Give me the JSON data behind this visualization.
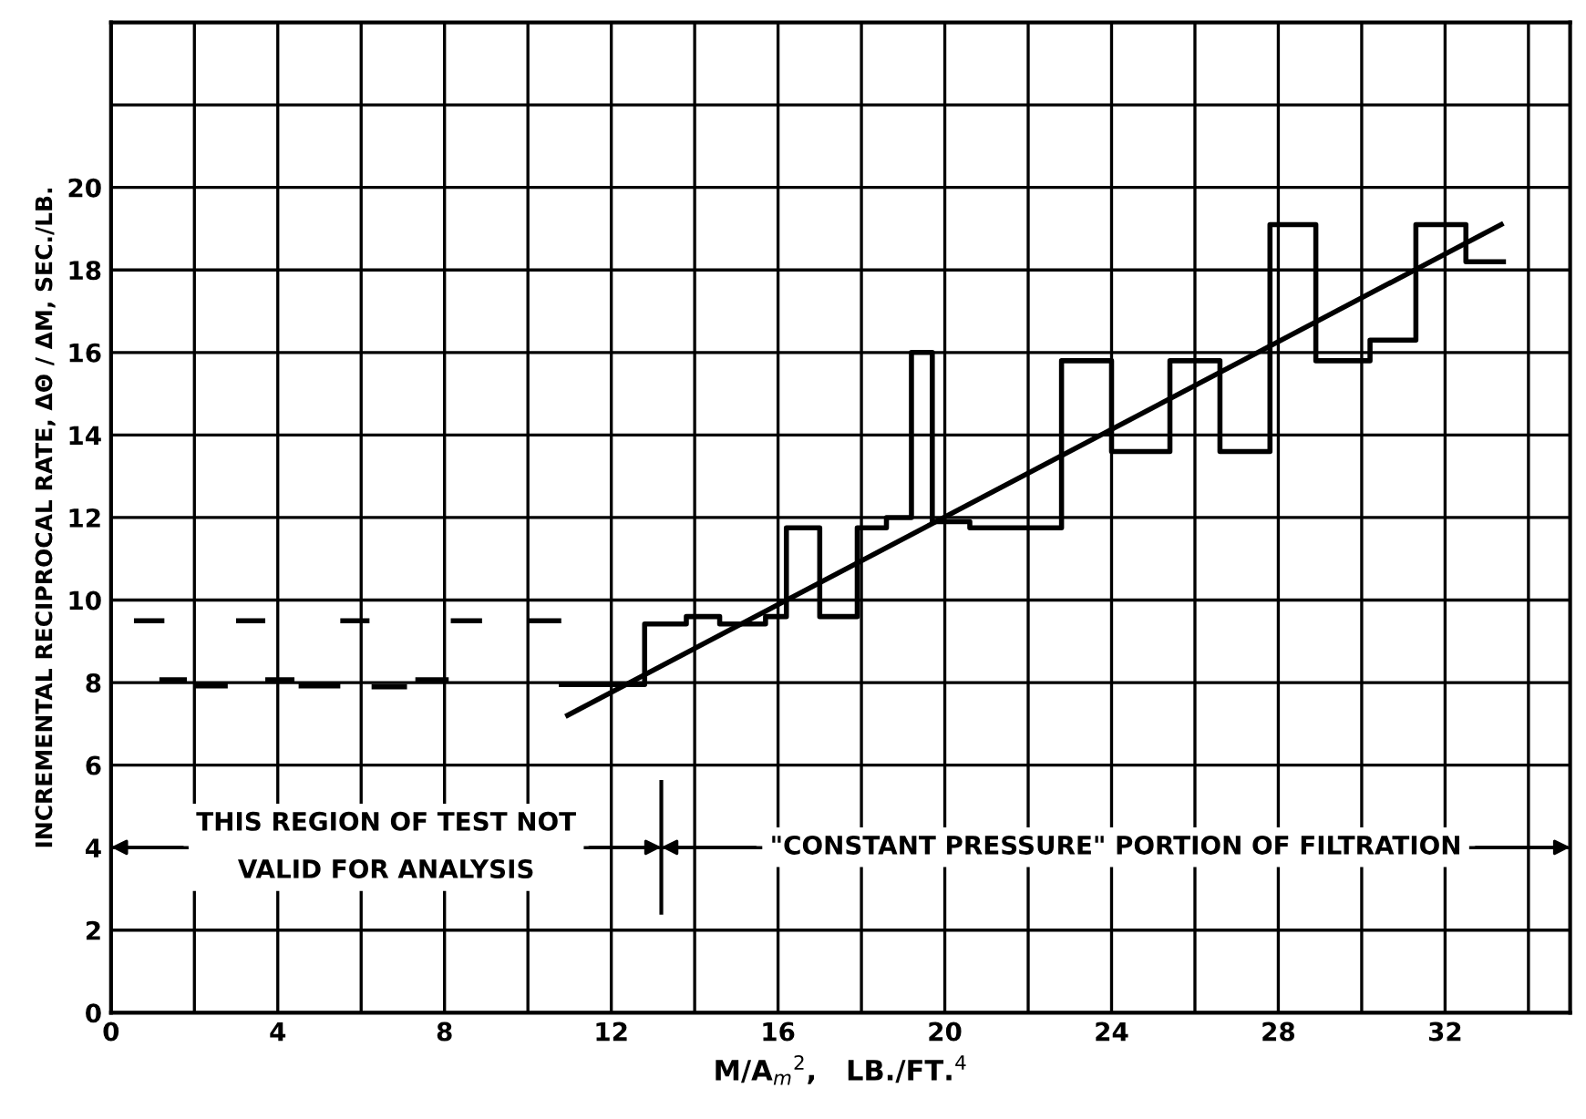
{
  "chart_data": {
    "type": "step",
    "xlabel": "M/A$_{m}$$^{2}$,   LB./FT.$^{4}$",
    "ylabel": "INCREMENTAL RECIPROCAL RATE, ΔΘ / ΔM, SEC./LB.",
    "xlim": [
      0,
      35
    ],
    "ylim": [
      0,
      24
    ],
    "xticks": [
      0,
      {
        "value": 2,
        "label": null
      },
      4,
      {
        "value": 6,
        "label": null
      },
      8,
      {
        "value": 10,
        "label": null
      },
      12,
      {
        "value": 14,
        "label": null
      },
      16,
      {
        "value": 18,
        "label": null
      },
      20,
      {
        "value": 22,
        "label": null
      },
      24,
      {
        "value": 26,
        "label": null
      },
      28,
      {
        "value": 30,
        "label": null
      },
      32,
      {
        "value": 34,
        "label": null
      }
    ],
    "yticks": [
      0,
      2,
      4,
      6,
      8,
      10,
      12,
      14,
      16,
      18,
      20,
      {
        "value": 22,
        "label": null
      }
    ],
    "grid": true,
    "legend": false,
    "marker": "none",
    "series": [
      {
        "color": "#000000",
        "x": [
          10.8,
          12.8,
          13.8,
          14.6,
          15.7,
          16.2,
          17.0,
          17.9,
          18.6,
          19.2,
          19.7,
          20.6,
          22.8,
          24.0,
          25.4,
          26.6,
          27.8,
          28.9,
          30.2,
          31.3,
          32.5,
          33.4
        ],
        "values": [
          7.95,
          9.42,
          9.6,
          9.42,
          9.6,
          11.75,
          9.6,
          11.75,
          12.0,
          16.0,
          11.9,
          11.75,
          15.8,
          13.6,
          15.8,
          13.6,
          19.1,
          15.8,
          16.3,
          19.1,
          18.2,
          18.2
        ]
      },
      {
        "type": "line",
        "color": "#000000",
        "x": [
          0.55,
          1.28,
          null,
          3.0,
          3.7,
          null,
          5.5,
          6.2,
          null,
          8.15,
          8.9,
          null,
          10.0,
          10.8
        ],
        "values": [
          9.5,
          9.5,
          null,
          9.5,
          9.5,
          null,
          9.5,
          9.5,
          null,
          9.5,
          9.5,
          null,
          9.5,
          9.5
        ]
      },
      {
        "type": "line",
        "color": "#000000",
        "x": [
          1.16,
          1.82,
          null,
          2.0,
          2.8,
          null,
          3.7,
          4.4,
          null,
          4.5,
          5.5,
          null,
          6.25,
          7.1,
          null,
          7.3,
          8.1,
          null,
          10.8,
          11.9
        ],
        "values": [
          8.07,
          8.07,
          null,
          7.92,
          7.92,
          null,
          8.07,
          8.07,
          null,
          7.92,
          7.92,
          null,
          7.9,
          7.9,
          null,
          8.07,
          8.07,
          null,
          7.95,
          7.95
        ]
      },
      {
        "type": "line",
        "color": "#000000",
        "x": [
          10.9,
          33.4
        ],
        "values": [
          7.18,
          19.13
        ]
      }
    ],
    "ref_lines": [
      {
        "axis": "x",
        "value": 13.2
      }
    ],
    "annotations": [
      "THIS REGION OF TEST NOT\nVALID FOR ANALYSIS",
      "\"CONSTANT PRESSURE\" PORTION OF FILTRATION"
    ]
  }
}
